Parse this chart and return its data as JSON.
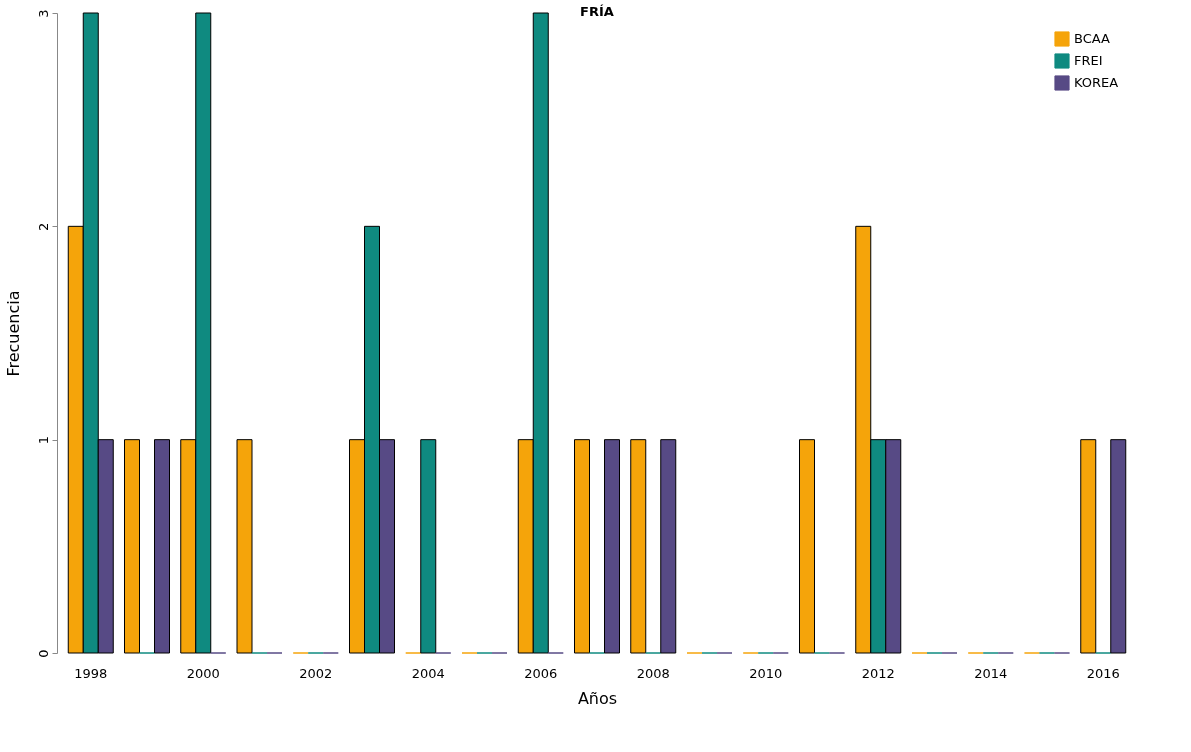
{
  "chart_data": {
    "type": "bar",
    "title": "FRÍA",
    "xlabel": "Años",
    "ylabel": "Frecuencia",
    "categories": [
      "1998",
      null,
      "2000",
      null,
      "2002",
      null,
      "2004",
      null,
      "2006",
      null,
      "2008",
      null,
      "2010",
      null,
      "2012",
      null,
      "2014",
      null,
      "2016"
    ],
    "series": [
      {
        "name": "BCAA",
        "color": "#f5a40a",
        "values": [
          2,
          1,
          1,
          1,
          0,
          1,
          0,
          0,
          1,
          1,
          1,
          0,
          0,
          1,
          2,
          0,
          0,
          0,
          1
        ]
      },
      {
        "name": "FREI",
        "color": "#0f8a80",
        "values": [
          3,
          0,
          3,
          0,
          0,
          2,
          1,
          0,
          3,
          0,
          0,
          0,
          0,
          0,
          1,
          0,
          0,
          0,
          0
        ]
      },
      {
        "name": "KOREA",
        "color": "#574a85",
        "values": [
          1,
          1,
          0,
          0,
          0,
          1,
          0,
          0,
          0,
          1,
          1,
          0,
          0,
          0,
          1,
          0,
          0,
          0,
          1
        ]
      }
    ],
    "ylim": [
      0,
      3
    ],
    "yticks": [
      0,
      1,
      2,
      3
    ],
    "grid": false,
    "legend": "top right"
  }
}
